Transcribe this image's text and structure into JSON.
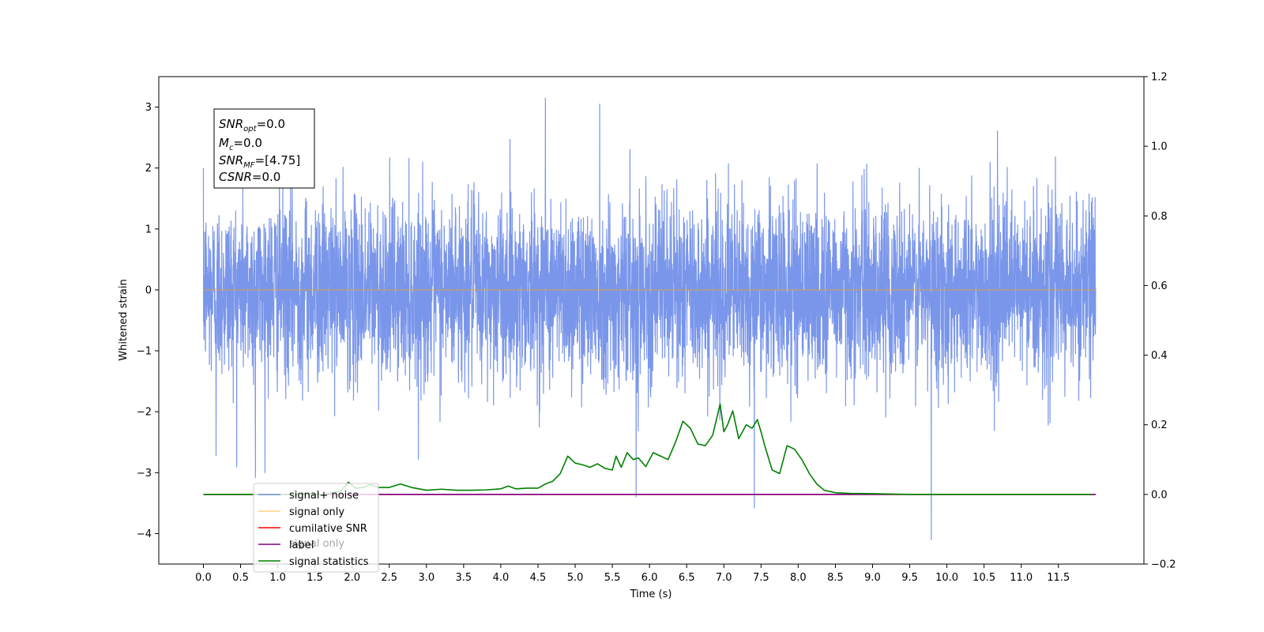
{
  "chart_data": {
    "type": "line",
    "xlabel": "Time (s)",
    "ylabel": "Whitened strain",
    "xlim": [
      -0.6,
      12.65
    ],
    "ylim": [
      -4.5,
      3.5
    ],
    "y2lim": [
      -0.2,
      1.2
    ],
    "x_ticks": [
      0.0,
      0.5,
      1.0,
      1.5,
      2.0,
      2.5,
      3.0,
      3.5,
      4.0,
      4.5,
      5.0,
      5.5,
      6.0,
      6.5,
      7.0,
      7.5,
      8.0,
      8.5,
      9.0,
      9.5,
      10.0,
      10.5,
      11.0,
      11.5
    ],
    "x_tick_labels": [
      "0.0",
      "0.5",
      "1.0",
      "1.5",
      "2.0",
      "2.5",
      "3.0",
      "3.5",
      "4.0",
      "4.5",
      "5.0",
      "5.5",
      "6.0",
      "6.5",
      "7.0",
      "7.5",
      "8.0",
      "8.5",
      "9.0",
      "9.5",
      "10.0",
      "10.5",
      "11.0",
      "11.5"
    ],
    "y_ticks": [
      -4,
      -3,
      -2,
      -1,
      0,
      1,
      2,
      3
    ],
    "y_tick_labels": [
      "−4",
      "−3",
      "−2",
      "−1",
      "0",
      "1",
      "2",
      "3"
    ],
    "y2_ticks": [
      -0.2,
      0.0,
      0.2,
      0.4,
      0.6,
      0.8,
      1.0,
      1.2
    ],
    "y2_tick_labels": [
      "−0.2",
      "0.0",
      "0.2",
      "0.4",
      "0.6",
      "0.8",
      "1.0",
      "1.2"
    ],
    "grid": false,
    "legend_position": "bottom-left",
    "series": [
      {
        "name": "signal+ noise",
        "axis": "left",
        "color": "#4169e1",
        "alpha": 0.7,
        "generated": "gaussian-noise",
        "x_range": [
          0.0,
          12.0
        ],
        "std": 0.72,
        "spikes": [
          [
            4.6,
            3.15
          ],
          [
            5.33,
            3.05
          ],
          [
            5.82,
            -3.4
          ],
          [
            7.41,
            -3.58
          ],
          [
            9.79,
            -4.1
          ],
          [
            0.17,
            -2.72
          ],
          [
            0.7,
            -3.08
          ]
        ]
      },
      {
        "name": "signal only",
        "axis": "left",
        "color": "#ffa500",
        "alpha": 0.5,
        "x": [
          0.0,
          12.0
        ],
        "y": [
          0.0,
          0.0
        ]
      },
      {
        "name": "cumilative SNR",
        "axis": "right",
        "color": "#ff0000",
        "x": [
          0.0,
          12.0
        ],
        "y": [
          0.0,
          0.0
        ]
      },
      {
        "name": "label",
        "axis": "right",
        "color": "#800080",
        "x": [
          0.0,
          12.0
        ],
        "y": [
          0.0,
          0.0
        ]
      },
      {
        "name": "signal statistics",
        "axis": "right",
        "color": "#008000",
        "x": [
          0.0,
          1.6,
          1.85,
          1.95,
          2.05,
          2.15,
          2.25,
          2.35,
          2.5,
          2.65,
          2.8,
          3.0,
          3.2,
          3.4,
          3.6,
          3.8,
          4.0,
          4.1,
          4.2,
          4.35,
          4.5,
          4.6,
          4.7,
          4.8,
          4.9,
          5.0,
          5.1,
          5.2,
          5.3,
          5.4,
          5.5,
          5.55,
          5.62,
          5.7,
          5.78,
          5.85,
          5.95,
          6.05,
          6.15,
          6.25,
          6.35,
          6.45,
          6.55,
          6.65,
          6.75,
          6.85,
          6.95,
          7.0,
          7.05,
          7.12,
          7.2,
          7.3,
          7.38,
          7.45,
          7.5,
          7.55,
          7.65,
          7.75,
          7.85,
          7.95,
          8.05,
          8.15,
          8.25,
          8.35,
          8.5,
          8.7,
          9.0,
          9.5,
          10.0,
          11.0,
          11.95
        ],
        "y": [
          0.0,
          0.0,
          0.01,
          0.035,
          0.018,
          0.02,
          0.028,
          0.02,
          0.02,
          0.03,
          0.02,
          0.012,
          0.015,
          0.012,
          0.012,
          0.013,
          0.016,
          0.024,
          0.016,
          0.018,
          0.018,
          0.03,
          0.038,
          0.06,
          0.11,
          0.09,
          0.085,
          0.078,
          0.088,
          0.075,
          0.07,
          0.11,
          0.078,
          0.12,
          0.1,
          0.105,
          0.08,
          0.12,
          0.11,
          0.1,
          0.15,
          0.21,
          0.19,
          0.145,
          0.14,
          0.17,
          0.26,
          0.18,
          0.2,
          0.24,
          0.16,
          0.2,
          0.19,
          0.215,
          0.18,
          0.14,
          0.07,
          0.06,
          0.14,
          0.13,
          0.1,
          0.06,
          0.03,
          0.012,
          0.005,
          0.003,
          0.002,
          0.0,
          0.0,
          0.0,
          0.0
        ]
      }
    ],
    "info_box": {
      "lines": [
        {
          "symbol": "SNR",
          "sub": "opt",
          "value": "=0.0"
        },
        {
          "symbol": "M",
          "sub": "c",
          "value": "=0.0"
        },
        {
          "symbol": "SNR",
          "sub": "MF",
          "value": "=[4.75]"
        },
        {
          "symbol": "CSNR",
          "sub": "",
          "value": "=0.0"
        }
      ]
    },
    "legend_overlap_text": "signal only"
  }
}
